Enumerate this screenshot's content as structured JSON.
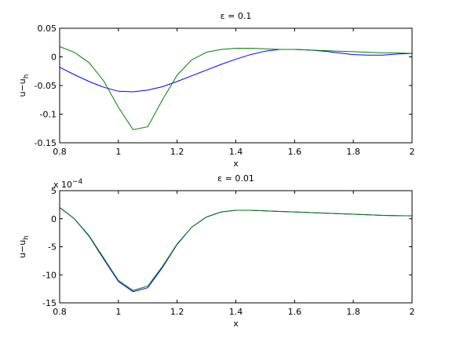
{
  "chart_data": [
    {
      "type": "line",
      "title": "ε = 0.1",
      "xlabel": "x",
      "ylabel": "u−u",
      "ylabel_sub": "h",
      "x": [
        0.8,
        0.85,
        0.9,
        0.95,
        1.0,
        1.05,
        1.1,
        1.15,
        1.2,
        1.25,
        1.3,
        1.35,
        1.4,
        1.45,
        1.5,
        1.55,
        1.6,
        1.65,
        1.7,
        1.75,
        1.8,
        1.85,
        1.9,
        1.95,
        2.0
      ],
      "series": [
        {
          "color": "#0000ff",
          "values": [
            -0.018,
            -0.031,
            -0.043,
            -0.053,
            -0.06,
            -0.061,
            -0.058,
            -0.052,
            -0.043,
            -0.033,
            -0.023,
            -0.013,
            -0.004,
            0.004,
            0.01,
            0.013,
            0.013,
            0.012,
            0.01,
            0.007,
            0.004,
            0.003,
            0.003,
            0.005,
            0.006
          ]
        },
        {
          "color": "#008000",
          "values": [
            0.018,
            0.008,
            -0.01,
            -0.042,
            -0.088,
            -0.127,
            -0.122,
            -0.075,
            -0.032,
            -0.005,
            0.008,
            0.013,
            0.015,
            0.015,
            0.014,
            0.013,
            0.013,
            0.012,
            0.011,
            0.01,
            0.009,
            0.008,
            0.007,
            0.007,
            0.006
          ]
        }
      ],
      "xlim": [
        0.8,
        2
      ],
      "xticks": [
        0.8,
        1,
        1.2,
        1.4,
        1.6,
        1.8,
        2
      ],
      "ylim": [
        -0.15,
        0.05
      ],
      "yticks": [
        0.05,
        0,
        -0.05,
        -0.1,
        -0.15
      ]
    },
    {
      "type": "line",
      "title": "ε = 0.01",
      "xlabel": "x",
      "ylabel": "u−u",
      "ylabel_sub": "h",
      "multiplier": "x 10",
      "multiplier_exp": "−4",
      "x": [
        0.8,
        0.85,
        0.9,
        0.95,
        1.0,
        1.05,
        1.1,
        1.15,
        1.2,
        1.25,
        1.3,
        1.35,
        1.4,
        1.45,
        1.5,
        1.55,
        1.6,
        1.65,
        1.7,
        1.75,
        1.8,
        1.85,
        1.9,
        1.95,
        2.0
      ],
      "series": [
        {
          "color": "#0000ff",
          "values": [
            2,
            0,
            -3.1,
            -7.2,
            -11.2,
            -13.0,
            -12.3,
            -8.7,
            -4.6,
            -1.5,
            0.3,
            1.2,
            1.5,
            1.5,
            1.4,
            1.3,
            1.2,
            1.1,
            1.0,
            0.9,
            0.8,
            0.7,
            0.6,
            0.55,
            0.5
          ]
        },
        {
          "color": "#008000",
          "values": [
            2,
            0,
            -3,
            -7,
            -11,
            -12.8,
            -12,
            -8.5,
            -4.5,
            -1.5,
            0.3,
            1.2,
            1.5,
            1.5,
            1.4,
            1.3,
            1.2,
            1.1,
            1.0,
            0.9,
            0.8,
            0.7,
            0.6,
            0.55,
            0.5
          ]
        }
      ],
      "xlim": [
        0.8,
        2
      ],
      "xticks": [
        0.8,
        1,
        1.2,
        1.4,
        1.6,
        1.8,
        2
      ],
      "ylim": [
        -15,
        5
      ],
      "yticks": [
        5,
        0,
        -5,
        -10,
        -15
      ]
    }
  ]
}
